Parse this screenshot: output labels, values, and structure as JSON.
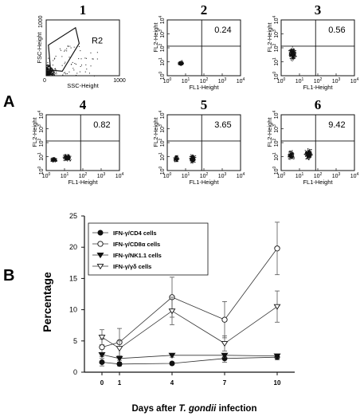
{
  "figure_letters": {
    "a": "A",
    "b": "B"
  },
  "chart_data": [
    {
      "type": "scatter",
      "panel": "1",
      "xlabel": "SSC-Height",
      "ylabel": "FSC-Height",
      "xlim": [
        0,
        1000
      ],
      "ylim": [
        0,
        1000
      ],
      "xticks": [
        "0",
        "1000"
      ],
      "yticks": [
        "0",
        "1000"
      ],
      "gate_label": "R2"
    },
    {
      "type": "scatter",
      "panel": "2",
      "xlabel": "FL1-Height",
      "ylabel": "FL2-Height",
      "xscale": "log",
      "yscale": "log",
      "xlim": [
        1,
        10000
      ],
      "ylim": [
        1,
        10000
      ],
      "upper_right_percent": "0.24"
    },
    {
      "type": "scatter",
      "panel": "3",
      "xlabel": "FL1-Height",
      "ylabel": "FL2-Height",
      "xscale": "log",
      "yscale": "log",
      "xlim": [
        1,
        10000
      ],
      "ylim": [
        1,
        10000
      ],
      "upper_right_percent": "0.56"
    },
    {
      "type": "scatter",
      "panel": "4",
      "xlabel": "FL1-Height",
      "ylabel": "FL2-Height",
      "xscale": "log",
      "yscale": "log",
      "xlim": [
        1,
        10000
      ],
      "ylim": [
        1,
        10000
      ],
      "upper_right_percent": "0.82"
    },
    {
      "type": "scatter",
      "panel": "5",
      "xlabel": "FL1-Height",
      "ylabel": "FL2-Height",
      "xscale": "log",
      "yscale": "log",
      "xlim": [
        1,
        10000
      ],
      "ylim": [
        1,
        10000
      ],
      "upper_right_percent": "3.65"
    },
    {
      "type": "scatter",
      "panel": "6",
      "xlabel": "FL1-Height",
      "ylabel": "FL2-Height",
      "xscale": "log",
      "yscale": "log",
      "xlim": [
        1,
        10000
      ],
      "ylim": [
        1,
        10000
      ],
      "upper_right_percent": "9.42"
    },
    {
      "type": "line",
      "panel": "B",
      "xlabel_parts": [
        "Days after ",
        "T. gondii",
        " infection"
      ],
      "ylabel": "Percentage",
      "x": [
        0,
        1,
        4,
        7,
        10
      ],
      "xticks": [
        "0",
        "1",
        "4",
        "7",
        "10"
      ],
      "ylim": [
        0,
        25
      ],
      "yticks": [
        "0",
        "5",
        "10",
        "15",
        "20",
        "25"
      ],
      "legend_position": "top-left",
      "series": [
        {
          "name": "IFN-γ/CD4 cells",
          "marker": "filled-circle",
          "values": [
            1.6,
            1.3,
            1.4,
            2.2,
            2.4
          ],
          "errors": [
            0.6,
            0.3,
            0.2,
            0.6,
            0.4
          ]
        },
        {
          "name": "IFN-γ/CD8α cells",
          "marker": "open-circle",
          "values": [
            4.0,
            4.8,
            12.0,
            8.4,
            19.8
          ],
          "errors": [
            1.3,
            2.2,
            3.2,
            2.9,
            4.2
          ]
        },
        {
          "name": "IFN-γ/NK1.1 cells",
          "marker": "filled-triangle-down",
          "values": [
            2.8,
            2.2,
            2.7,
            2.7,
            2.6
          ],
          "errors": [
            0.3,
            0.3,
            0.3,
            0.3,
            0.3
          ]
        },
        {
          "name": "IFN-γ/γδ cells",
          "marker": "open-triangle-down",
          "values": [
            5.6,
            3.8,
            9.8,
            4.6,
            10.5
          ],
          "errors": [
            1.2,
            1.2,
            2.2,
            1.2,
            2.5
          ]
        }
      ]
    }
  ]
}
